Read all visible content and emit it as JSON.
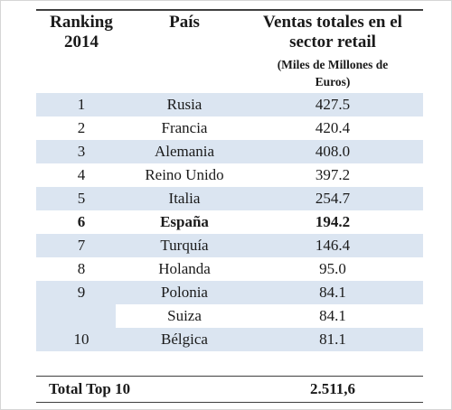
{
  "headers": {
    "rank_line1": "Ranking",
    "rank_line2": "2014",
    "country": "País",
    "sales_line1": "Ventas totales en el",
    "sales_line2": "sector retail",
    "units_line1": "(Miles de Millones de",
    "units_line2": "Euros)"
  },
  "rows": [
    {
      "rank": "1",
      "country": "Rusia",
      "sales": "427.5"
    },
    {
      "rank": "2",
      "country": "Francia",
      "sales": "420.4"
    },
    {
      "rank": "3",
      "country": "Alemania",
      "sales": "408.0"
    },
    {
      "rank": "4",
      "country": "Reino Unido",
      "sales": "397.2"
    },
    {
      "rank": "5",
      "country": "Italia",
      "sales": "254.7"
    },
    {
      "rank": "6",
      "country": "España",
      "sales": "194.2"
    },
    {
      "rank": "7",
      "country": "Turquía",
      "sales": "146.4"
    },
    {
      "rank": "8",
      "country": "Holanda",
      "sales": "95.0"
    },
    {
      "rank": "9",
      "country": "Polonia",
      "sales": "84.1"
    },
    {
      "rank": "",
      "country": "Suiza",
      "sales": "84.1"
    },
    {
      "rank": "10",
      "country": "Bélgica",
      "sales": "81.1"
    }
  ],
  "total": {
    "label": "Total Top 10",
    "value": "2.511,6"
  },
  "colors": {
    "row_shade": "#dbe5f1",
    "rule": "#3f3f3f"
  }
}
